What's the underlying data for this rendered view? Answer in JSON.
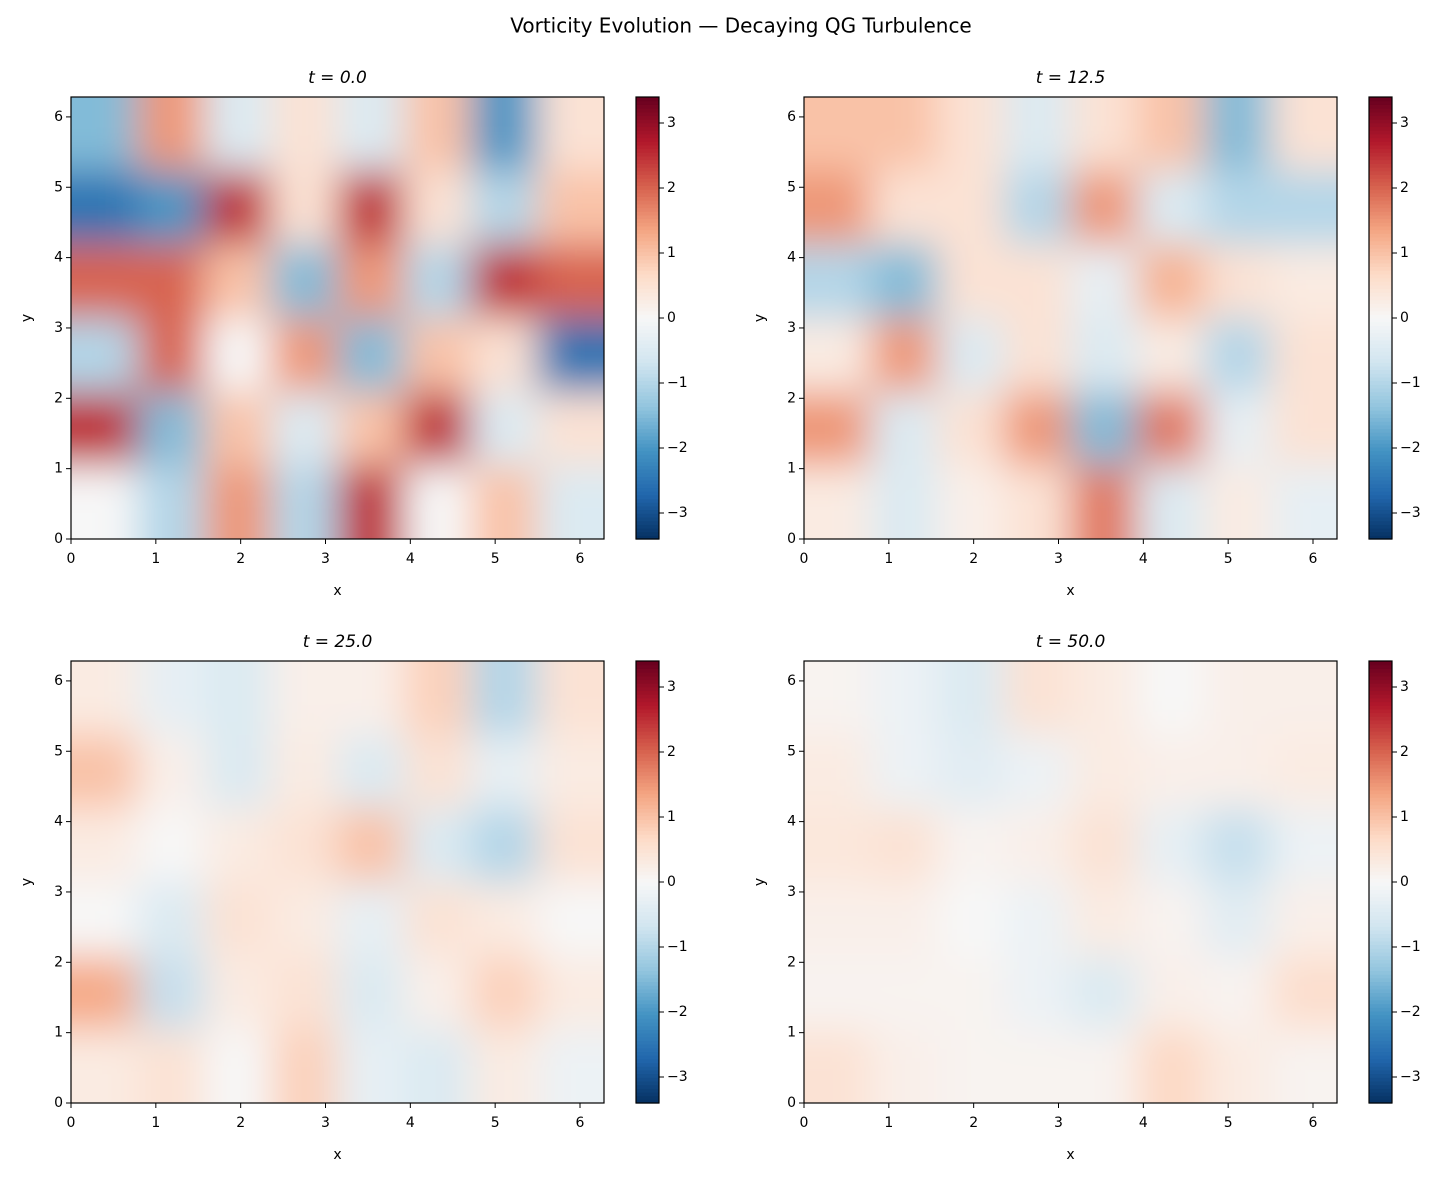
{
  "title": "Vorticity Evolution — Decaying QG Turbulence",
  "chart_data": [
    {
      "type": "heatmap",
      "title": "t = 0.0",
      "xlabel": "x",
      "ylabel": "y",
      "xlim": [
        0,
        6.283
      ],
      "ylim": [
        0,
        6.283
      ],
      "xticks": [
        0,
        1,
        2,
        3,
        4,
        5,
        6
      ],
      "yticks": [
        0,
        1,
        2,
        3,
        4,
        5,
        6
      ],
      "colormap": "RdBu_r",
      "vlim": [
        -3.4,
        3.4
      ],
      "colorbar_ticks": [
        {
          "value": -3,
          "label": "−3"
        },
        {
          "value": -2,
          "label": "−2"
        },
        {
          "value": -1,
          "label": "−1"
        },
        0,
        1,
        2,
        3
      ],
      "z": [
        [
          -1.5,
          1.5,
          -0.5,
          0.5,
          -0.5,
          1,
          -2,
          0.5
        ],
        [
          -2.5,
          -2,
          2.5,
          0.5,
          2.5,
          0.5,
          -1,
          1
        ],
        [
          2,
          2,
          1,
          -1.5,
          1.5,
          -1,
          2.5,
          2
        ],
        [
          -1,
          2,
          0,
          1.5,
          -1.5,
          1,
          0.5,
          -2.5
        ],
        [
          2.5,
          -1.5,
          1,
          -0.5,
          1,
          2.5,
          -0.5,
          0.5
        ],
        [
          0,
          -1,
          1.5,
          -1,
          2.5,
          0,
          1,
          -0.5
        ]
      ]
    },
    {
      "type": "heatmap",
      "title": "t = 12.5",
      "xlabel": "x",
      "ylabel": "y",
      "xlim": [
        0,
        6.283
      ],
      "ylim": [
        0,
        6.283
      ],
      "xticks": [
        0,
        1,
        2,
        3,
        4,
        5,
        6
      ],
      "yticks": [
        0,
        1,
        2,
        3,
        4,
        5,
        6
      ],
      "colormap": "RdBu_r",
      "vlim": [
        -3.4,
        3.4
      ],
      "colorbar_ticks": [
        {
          "value": -3,
          "label": "−3"
        },
        {
          "value": -2,
          "label": "−2"
        },
        {
          "value": -1,
          "label": "−1"
        },
        0,
        1,
        2,
        3
      ],
      "z": [
        [
          1,
          1,
          0.5,
          -0.5,
          0.5,
          1,
          -1.5,
          0.5
        ],
        [
          1.5,
          0.5,
          0.5,
          -1,
          1.5,
          -0.5,
          -1,
          -1
        ],
        [
          -1,
          -1.5,
          0.5,
          0.5,
          -0.3,
          1.2,
          0.5,
          0.3
        ],
        [
          0.3,
          1.5,
          -0.5,
          0.5,
          -0.5,
          0.3,
          -1,
          0.5
        ],
        [
          1.5,
          -0.5,
          0.5,
          1.5,
          -1.5,
          1.8,
          -0.3,
          0.5
        ],
        [
          0.3,
          -0.5,
          0.2,
          0.5,
          1.8,
          -0.5,
          0.3,
          -0.3
        ]
      ]
    },
    {
      "type": "heatmap",
      "title": "t = 25.0",
      "xlabel": "x",
      "ylabel": "y",
      "xlim": [
        0,
        6.283
      ],
      "ylim": [
        0,
        6.283
      ],
      "xticks": [
        0,
        1,
        2,
        3,
        4,
        5,
        6
      ],
      "yticks": [
        0,
        1,
        2,
        3,
        4,
        5,
        6
      ],
      "colormap": "RdBu_r",
      "vlim": [
        -3.4,
        3.4
      ],
      "colorbar_ticks": [
        {
          "value": -3,
          "label": "−3"
        },
        {
          "value": -2,
          "label": "−2"
        },
        {
          "value": -1,
          "label": "−1"
        },
        0,
        1,
        2,
        3
      ],
      "z": [
        [
          0.3,
          -0.3,
          -0.5,
          0.2,
          0.2,
          0.8,
          -1,
          0.5
        ],
        [
          1,
          0.2,
          -0.5,
          0.3,
          -0.5,
          0.5,
          -0.3,
          0.3
        ],
        [
          0.3,
          0,
          0.3,
          0.5,
          1,
          -0.5,
          -1,
          0.5
        ],
        [
          0,
          -0.5,
          0.5,
          0.3,
          -0.3,
          0.5,
          0.3,
          0
        ],
        [
          1.3,
          -0.8,
          0.3,
          0.5,
          -0.5,
          0.2,
          0.8,
          0.3
        ],
        [
          0.3,
          0.5,
          0,
          0.8,
          -0.3,
          -0.5,
          0.3,
          -0.2
        ]
      ]
    },
    {
      "type": "heatmap",
      "title": "t = 50.0",
      "xlabel": "x",
      "ylabel": "y",
      "xlim": [
        0,
        6.283
      ],
      "ylim": [
        0,
        6.283
      ],
      "xticks": [
        0,
        1,
        2,
        3,
        4,
        5,
        6
      ],
      "yticks": [
        0,
        1,
        2,
        3,
        4,
        5,
        6
      ],
      "colormap": "RdBu_r",
      "vlim": [
        -3.4,
        3.4
      ],
      "colorbar_ticks": [
        {
          "value": -3,
          "label": "−3"
        },
        {
          "value": -2,
          "label": "−2"
        },
        {
          "value": -1,
          "label": "−1"
        },
        0,
        1,
        2,
        3
      ],
      "z": [
        [
          0.1,
          -0.2,
          -0.5,
          0.5,
          0.3,
          0,
          0.2,
          0.2
        ],
        [
          0.3,
          -0.2,
          -0.4,
          -0.2,
          0.3,
          0.2,
          0.2,
          0.3
        ],
        [
          0.4,
          0.5,
          0.1,
          0.2,
          0.5,
          -0.3,
          -0.8,
          -0.2
        ],
        [
          0.2,
          0.2,
          0,
          -0.2,
          0.3,
          0.1,
          -0.4,
          0.2
        ],
        [
          0.1,
          0.1,
          0.1,
          -0.2,
          -0.5,
          0.2,
          0.1,
          0.6
        ],
        [
          0.5,
          0.2,
          0.1,
          0.1,
          0.1,
          0.7,
          0.3,
          0.1
        ]
      ]
    }
  ]
}
